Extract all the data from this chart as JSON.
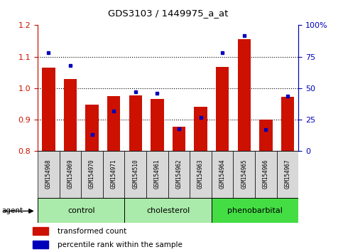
{
  "title": "GDS3103 / 1449975_a_at",
  "samples": [
    "GSM154968",
    "GSM154969",
    "GSM154970",
    "GSM154971",
    "GSM154510",
    "GSM154961",
    "GSM154962",
    "GSM154963",
    "GSM154964",
    "GSM154965",
    "GSM154966",
    "GSM154967"
  ],
  "red_values": [
    1.065,
    1.03,
    0.948,
    0.975,
    0.978,
    0.965,
    0.878,
    0.942,
    1.068,
    1.155,
    0.9,
    0.972
  ],
  "blue_values": [
    78,
    68,
    13,
    32,
    47,
    46,
    18,
    27,
    78,
    92,
    17,
    44
  ],
  "groups": [
    {
      "label": "control",
      "start": 0,
      "end": 4,
      "color": "#aaeaaa"
    },
    {
      "label": "cholesterol",
      "start": 4,
      "end": 8,
      "color": "#aaeaaa"
    },
    {
      "label": "phenobarbital",
      "start": 8,
      "end": 12,
      "color": "#44dd44"
    }
  ],
  "ylim_left": [
    0.8,
    1.2
  ],
  "ylim_right": [
    0,
    100
  ],
  "yticks_left": [
    0.8,
    0.9,
    1.0,
    1.1,
    1.2
  ],
  "yticks_right": [
    0,
    25,
    50,
    75,
    100
  ],
  "yticklabels_left": [
    "0.8",
    "0.9",
    "1.0",
    "1.1",
    "1.2"
  ],
  "yticklabels_right": [
    "0",
    "25",
    "50",
    "75",
    "100%"
  ],
  "bar_bottom": 0.8,
  "bar_color": "#cc1100",
  "dot_color": "#0000bb",
  "sample_label_bg": "#d8d8d8",
  "agent_label": "agent",
  "legend_items": [
    {
      "label": "transformed count",
      "color": "#cc1100"
    },
    {
      "label": "percentile rank within the sample",
      "color": "#0000bb"
    }
  ]
}
